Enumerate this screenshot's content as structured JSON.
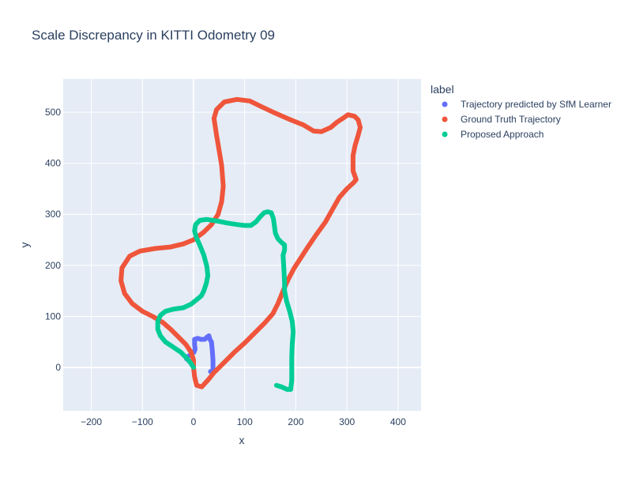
{
  "chart_data": {
    "type": "line",
    "title": "Scale Discrepancy in KITTI Odometry 09",
    "xlabel": "x",
    "ylabel": "y",
    "xlim": [
      -255,
      445
    ],
    "ylim": [
      -85,
      565
    ],
    "xticks": [
      -200,
      -100,
      0,
      100,
      200,
      300,
      400
    ],
    "yticks": [
      0,
      100,
      200,
      300,
      400,
      500
    ],
    "xtick_labels": [
      "−200",
      "−100",
      "0",
      "100",
      "200",
      "300",
      "400"
    ],
    "ytick_labels": [
      "0",
      "100",
      "200",
      "300",
      "400",
      "500"
    ],
    "grid": true,
    "legend_title": "label",
    "legend_position": "right",
    "series": [
      {
        "name": "Trajectory predicted by SfM Learner",
        "color": "#636efa",
        "points": [
          [
            0,
            0
          ],
          [
            -5,
            8
          ],
          [
            -10,
            14
          ],
          [
            -14,
            17
          ],
          [
            -10,
            22
          ],
          [
            -4,
            26
          ],
          [
            1,
            30
          ],
          [
            3,
            36
          ],
          [
            2,
            45
          ],
          [
            2,
            55
          ],
          [
            8,
            57
          ],
          [
            14,
            55
          ],
          [
            22,
            55
          ],
          [
            27,
            60
          ],
          [
            30,
            62
          ],
          [
            32,
            55
          ],
          [
            35,
            50
          ],
          [
            36,
            40
          ],
          [
            37,
            28
          ],
          [
            38,
            14
          ],
          [
            38,
            0
          ],
          [
            38,
            -8
          ],
          [
            33,
            -8
          ]
        ]
      },
      {
        "name": "Ground Truth Trajectory",
        "color": "#ef553b",
        "points": [
          [
            0,
            0
          ],
          [
            2,
            -18
          ],
          [
            6,
            -35
          ],
          [
            16,
            -38
          ],
          [
            28,
            -25
          ],
          [
            40,
            -10
          ],
          [
            50,
            0
          ],
          [
            60,
            10
          ],
          [
            80,
            30
          ],
          [
            100,
            48
          ],
          [
            120,
            68
          ],
          [
            140,
            88
          ],
          [
            155,
            105
          ],
          [
            165,
            125
          ],
          [
            175,
            150
          ],
          [
            185,
            172
          ],
          [
            197,
            195
          ],
          [
            210,
            215
          ],
          [
            225,
            238
          ],
          [
            240,
            260
          ],
          [
            258,
            285
          ],
          [
            272,
            310
          ],
          [
            285,
            333
          ],
          [
            300,
            350
          ],
          [
            313,
            362
          ],
          [
            318,
            368
          ],
          [
            312,
            385
          ],
          [
            312,
            400
          ],
          [
            312,
            415
          ],
          [
            316,
            435
          ],
          [
            322,
            455
          ],
          [
            326,
            470
          ],
          [
            322,
            485
          ],
          [
            315,
            492
          ],
          [
            302,
            495
          ],
          [
            292,
            488
          ],
          [
            280,
            480
          ],
          [
            268,
            470
          ],
          [
            250,
            462
          ],
          [
            235,
            463
          ],
          [
            215,
            475
          ],
          [
            190,
            485
          ],
          [
            160,
            498
          ],
          [
            130,
            512
          ],
          [
            110,
            522
          ],
          [
            85,
            525
          ],
          [
            60,
            520
          ],
          [
            45,
            505
          ],
          [
            40,
            488
          ],
          [
            45,
            455
          ],
          [
            50,
            425
          ],
          [
            55,
            395
          ],
          [
            58,
            355
          ],
          [
            55,
            325
          ],
          [
            48,
            300
          ],
          [
            35,
            280
          ],
          [
            20,
            265
          ],
          [
            0,
            250
          ],
          [
            -20,
            242
          ],
          [
            -45,
            236
          ],
          [
            -75,
            233
          ],
          [
            -105,
            228
          ],
          [
            -125,
            218
          ],
          [
            -140,
            195
          ],
          [
            -142,
            170
          ],
          [
            -135,
            145
          ],
          [
            -120,
            125
          ],
          [
            -100,
            110
          ],
          [
            -80,
            100
          ],
          [
            -60,
            88
          ],
          [
            -45,
            75
          ],
          [
            -30,
            60
          ],
          [
            -15,
            45
          ],
          [
            -5,
            30
          ],
          [
            0,
            15
          ],
          [
            0,
            0
          ]
        ]
      },
      {
        "name": "Proposed Approach",
        "color": "#00cc96",
        "points": [
          [
            0,
            0
          ],
          [
            -5,
            8
          ],
          [
            -15,
            20
          ],
          [
            -25,
            30
          ],
          [
            -40,
            40
          ],
          [
            -55,
            50
          ],
          [
            -65,
            62
          ],
          [
            -70,
            75
          ],
          [
            -70,
            90
          ],
          [
            -65,
            102
          ],
          [
            -55,
            110
          ],
          [
            -40,
            114
          ],
          [
            -20,
            117
          ],
          [
            -5,
            124
          ],
          [
            5,
            132
          ],
          [
            15,
            140
          ],
          [
            20,
            150
          ],
          [
            25,
            165
          ],
          [
            28,
            180
          ],
          [
            26,
            198
          ],
          [
            20,
            220
          ],
          [
            12,
            240
          ],
          [
            5,
            255
          ],
          [
            2,
            268
          ],
          [
            4,
            280
          ],
          [
            12,
            288
          ],
          [
            25,
            290
          ],
          [
            45,
            287
          ],
          [
            65,
            283
          ],
          [
            85,
            280
          ],
          [
            100,
            278
          ],
          [
            112,
            278
          ],
          [
            122,
            285
          ],
          [
            130,
            295
          ],
          [
            138,
            303
          ],
          [
            145,
            305
          ],
          [
            152,
            303
          ],
          [
            156,
            292
          ],
          [
            158,
            278
          ],
          [
            160,
            263
          ],
          [
            165,
            252
          ],
          [
            172,
            245
          ],
          [
            178,
            240
          ],
          [
            178,
            230
          ],
          [
            175,
            220
          ],
          [
            176,
            205
          ],
          [
            177,
            185
          ],
          [
            178,
            165
          ],
          [
            178,
            150
          ],
          [
            182,
            130
          ],
          [
            188,
            110
          ],
          [
            193,
            90
          ],
          [
            195,
            70
          ],
          [
            193,
            45
          ],
          [
            192,
            20
          ],
          [
            192,
            -5
          ],
          [
            192,
            -25
          ],
          [
            190,
            -43
          ],
          [
            183,
            -43
          ],
          [
            172,
            -38
          ],
          [
            162,
            -35
          ]
        ]
      }
    ]
  }
}
